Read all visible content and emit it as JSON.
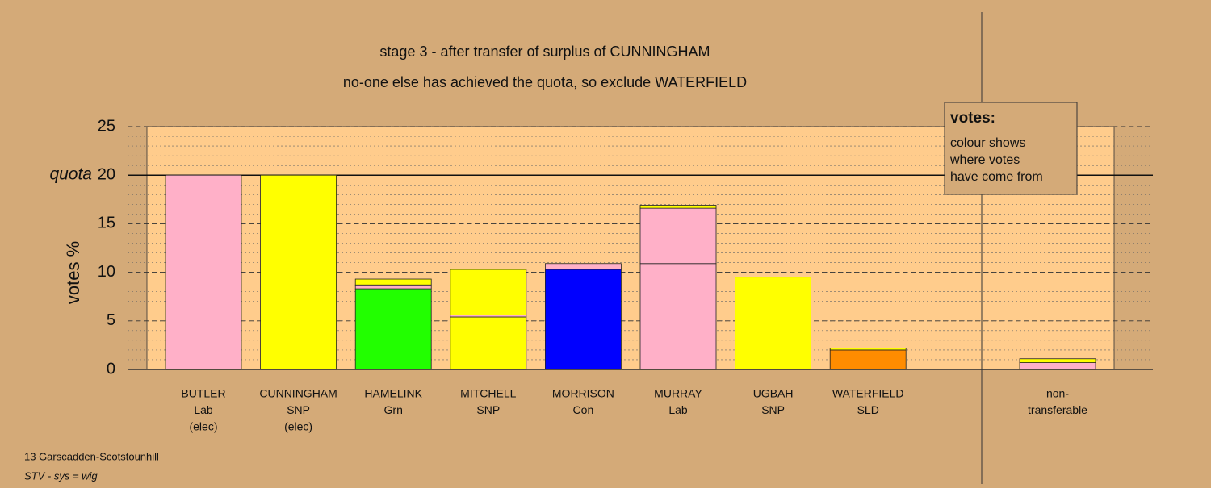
{
  "chart_data": {
    "type": "stacked-bar",
    "title": "stage 3 - after transfer of surplus of CUNNINGHAM",
    "subtitle": "no-one else has achieved the quota, so exclude WATERFIELD",
    "ylabel": "votes %",
    "ylim": [
      0,
      25
    ],
    "yticks": [
      0,
      5,
      10,
      15,
      20,
      25
    ],
    "minor_grid_step": 1,
    "quota": 20,
    "quota_label": "quota",
    "bars": [
      {
        "label": [
          "BUTLER",
          "Lab",
          "(elec)"
        ],
        "segments": [
          {
            "color": "#ffb0c8",
            "value": 20
          }
        ]
      },
      {
        "label": [
          "CUNNINGHAM",
          "SNP",
          "(elec)"
        ],
        "segments": [
          {
            "color": "#ffff00",
            "value": 20
          }
        ]
      },
      {
        "label": [
          "HAMELINK",
          "Grn"
        ],
        "segments": [
          {
            "color": "#22ff00",
            "value": 8.3
          },
          {
            "color": "#ffb0c8",
            "value": 0.4
          },
          {
            "color": "#ffff00",
            "value": 0.6
          }
        ]
      },
      {
        "label": [
          "MITCHELL",
          "SNP"
        ],
        "segments": [
          {
            "color": "#ffff00",
            "value": 5.4
          },
          {
            "color": "#ffb0c8",
            "value": 0.2
          },
          {
            "color": "#ffff00",
            "value": 4.7
          }
        ]
      },
      {
        "label": [
          "MORRISON",
          "Con"
        ],
        "segments": [
          {
            "color": "#0000ff",
            "value": 10.3
          },
          {
            "color": "#ffb0c8",
            "value": 0.6
          }
        ]
      },
      {
        "label": [
          "MURRAY",
          "Lab"
        ],
        "segments": [
          {
            "color": "#ffb0c8",
            "value": 10.9
          },
          {
            "color": "#ffb0c8",
            "value": 5.7
          },
          {
            "color": "#ffff00",
            "value": 0.3
          }
        ]
      },
      {
        "label": [
          "UGBAH",
          "SNP"
        ],
        "segments": [
          {
            "color": "#ffff00",
            "value": 8.6
          },
          {
            "color": "#ffff00",
            "value": 0.9
          }
        ]
      },
      {
        "label": [
          "WATERFIELD",
          "SLD"
        ],
        "segments": [
          {
            "color": "#ff8c00",
            "value": 2.0
          },
          {
            "color": "#ffff00",
            "value": 0.2
          }
        ]
      }
    ],
    "nontransferable": {
      "label": [
        "non-",
        "transferable"
      ],
      "segments": [
        {
          "color": "#ffb0c8",
          "value": 0.7
        },
        {
          "color": "#ffff00",
          "value": 0.4
        }
      ]
    },
    "legend": {
      "title": "votes:",
      "lines": [
        "colour shows",
        "where votes",
        "have come from"
      ]
    },
    "footer": [
      "13 Garscadden-Scotstounhill",
      "STV - sys = wig"
    ]
  }
}
